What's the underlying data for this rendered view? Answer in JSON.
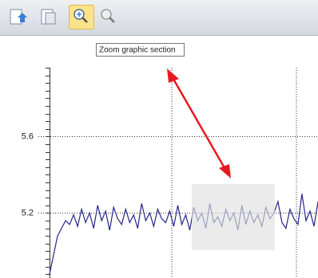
{
  "toolbar": {
    "tooltip": "Zoom graphic section"
  },
  "chart": {
    "type": "line",
    "color": "#25258a",
    "ylim": [
      4.86,
      5.96
    ],
    "yticks": [
      5.2,
      5.6
    ],
    "minor_yticks": [
      4.88,
      4.92,
      4.96,
      5.0,
      5.04,
      5.08,
      5.12,
      5.16,
      5.2,
      5.24,
      5.28,
      5.32,
      5.36,
      5.4,
      5.44,
      5.48,
      5.52,
      5.56,
      5.6,
      5.64,
      5.68,
      5.72,
      5.76,
      5.8,
      5.84,
      5.88,
      5.92,
      5.96
    ],
    "grid": true,
    "values": [
      4.88,
      4.98,
      5.08,
      5.12,
      5.16,
      5.14,
      5.19,
      5.13,
      5.22,
      5.15,
      5.2,
      5.12,
      5.24,
      5.16,
      5.21,
      5.11,
      5.23,
      5.17,
      5.14,
      5.22,
      5.15,
      5.19,
      5.12,
      5.25,
      5.16,
      5.2,
      5.13,
      5.22,
      5.17,
      5.15,
      5.21,
      5.13,
      5.24,
      5.14,
      5.19,
      5.11,
      5.23,
      5.16,
      5.2,
      5.12,
      5.25,
      5.15,
      5.18,
      5.13,
      5.22,
      5.16,
      5.2,
      5.11,
      5.24,
      5.14,
      5.21,
      5.15,
      5.19,
      5.13,
      5.23,
      5.17,
      5.2,
      5.26,
      5.15,
      5.12,
      5.22,
      5.17,
      5.14,
      5.3,
      5.16,
      5.21,
      5.13,
      5.26
    ]
  }
}
